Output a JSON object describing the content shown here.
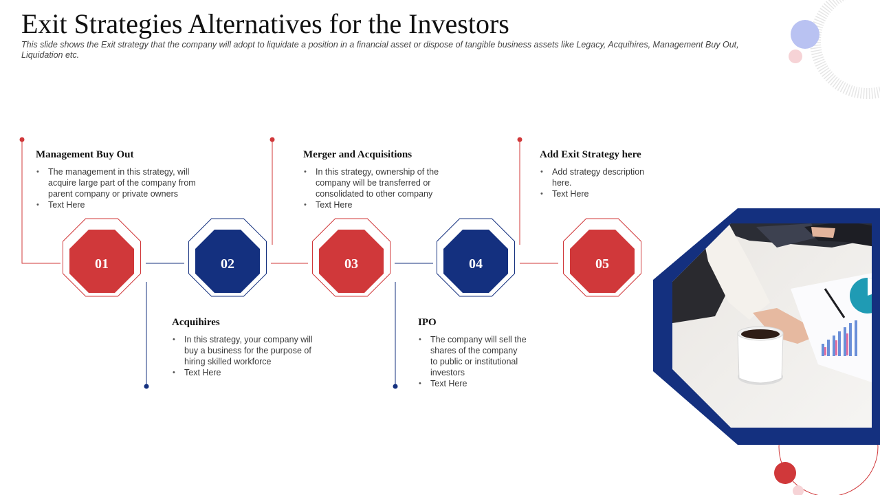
{
  "header": {
    "title": "Exit Strategies Alternatives for the Investors",
    "subtitle": "This slide shows the Exit strategy that the company will adopt to liquidate a position in a financial asset or dispose of tangible business assets like Legacy, Acquihires, Management Buy Out, Liquidation etc."
  },
  "colors": {
    "red": "#d0383a",
    "navy": "#14307f",
    "connector": "#d0383a"
  },
  "steps": [
    {
      "number": "01",
      "color": "red"
    },
    {
      "number": "02",
      "color": "navy"
    },
    {
      "number": "03",
      "color": "red"
    },
    {
      "number": "04",
      "color": "navy"
    },
    {
      "number": "05",
      "color": "red"
    }
  ],
  "strategies": [
    {
      "title": "Management Buy Out",
      "bullets": [
        "The management in this strategy, will acquire large part of the company from parent company or private owners",
        "Text Here"
      ]
    },
    {
      "title": "Acquihires",
      "bullets": [
        "In this strategy, your company will buy a business for the purpose of hiring skilled workforce",
        "Text Here"
      ]
    },
    {
      "title": "Merger and Acquisitions",
      "bullets": [
        "In this strategy, ownership of the company will be transferred or consolidated to other company",
        "Text Here"
      ]
    },
    {
      "title": "IPO",
      "bullets": [
        "The company will sell the shares of the company to public or institutional investors",
        "Text Here"
      ]
    },
    {
      "title": "Add Exit Strategy here",
      "bullets": [
        "Add strategy description here.",
        "Text Here"
      ]
    }
  ],
  "photo": {
    "icon": "office-meeting-photo"
  }
}
